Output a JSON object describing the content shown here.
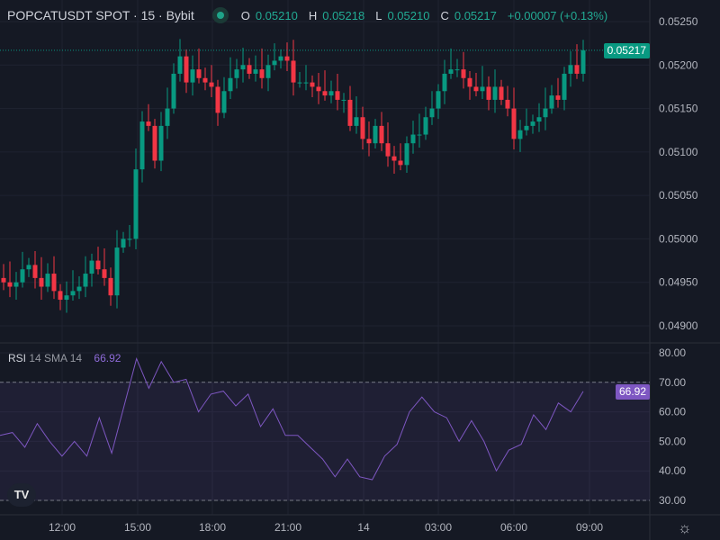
{
  "header": {
    "symbol": "POPCATUSDT SPOT · 15 · Bybit",
    "status": "market-open",
    "o_label": "O",
    "open": "0.05210",
    "h_label": "H",
    "high": "0.05218",
    "l_label": "L",
    "low": "0.05210",
    "c_label": "C",
    "close": "0.05217",
    "change": "+0.00007 (+0.13%)"
  },
  "price_axis": {
    "labels": [
      "0.05250",
      "0.05200",
      "0.05150",
      "0.05100",
      "0.05050",
      "0.05000",
      "0.04950",
      "0.04900"
    ],
    "values": [
      0.0525,
      0.052,
      0.0515,
      0.051,
      0.0505,
      0.05,
      0.0495,
      0.049
    ],
    "current": "0.05217",
    "current_value": 0.05217
  },
  "time_axis": {
    "labels": [
      "12:00",
      "15:00",
      "18:00",
      "21:00",
      "14",
      "03:00",
      "06:00",
      "09:00"
    ]
  },
  "rsi": {
    "name": "RSI",
    "params": "14 SMA 14",
    "value": "66.92",
    "current_value": 66.92,
    "labels": [
      "80.00",
      "70.00",
      "60.00",
      "50.00",
      "40.00",
      "30.00"
    ],
    "upper": 70,
    "lower": 30,
    "series": [
      52,
      53,
      48,
      56,
      50,
      45,
      50,
      45,
      58,
      46,
      62,
      78,
      68,
      77,
      70,
      71,
      60,
      66,
      67,
      62,
      66,
      55,
      61,
      52,
      52,
      48,
      44,
      38,
      44,
      38,
      37,
      45,
      49,
      60,
      65,
      60,
      58,
      50,
      57,
      50,
      40,
      47,
      49,
      59,
      54,
      63,
      60,
      66.92
    ]
  },
  "colors": {
    "up": "#089981",
    "down": "#f23645",
    "rsi": "#7e57c2",
    "bg": "#151924"
  },
  "chart_data": {
    "type": "candlestick",
    "closes": [
      0.04955,
      0.0495,
      0.04945,
      0.0495,
      0.04965,
      0.0497,
      0.04955,
      0.04945,
      0.0496,
      0.0494,
      0.0493,
      0.04935,
      0.0494,
      0.04945,
      0.0496,
      0.04975,
      0.04965,
      0.04955,
      0.04935,
      0.0499,
      0.05,
      0.05,
      0.0508,
      0.05135,
      0.0513,
      0.0509,
      0.0513,
      0.0515,
      0.0519,
      0.0521,
      0.0518,
      0.05195,
      0.05185,
      0.0518,
      0.05175,
      0.05145,
      0.0517,
      0.05185,
      0.05195,
      0.052,
      0.0519,
      0.05195,
      0.05185,
      0.052,
      0.05205,
      0.0521,
      0.05205,
      0.0518,
      0.0518,
      0.0518,
      0.05175,
      0.0517,
      0.05165,
      0.0517,
      0.0516,
      0.0516,
      0.0513,
      0.0514,
      0.05115,
      0.0511,
      0.0513,
      0.0511,
      0.05095,
      0.0509,
      0.05085,
      0.0511,
      0.0512,
      0.0512,
      0.0514,
      0.0515,
      0.0517,
      0.0519,
      0.05195,
      0.05195,
      0.05185,
      0.05175,
      0.0517,
      0.05175,
      0.0516,
      0.05175,
      0.0516,
      0.0515,
      0.05115,
      0.05125,
      0.0513,
      0.05135,
      0.0514,
      0.0515,
      0.05165,
      0.0516,
      0.0519,
      0.052,
      0.0519,
      0.05217
    ]
  }
}
